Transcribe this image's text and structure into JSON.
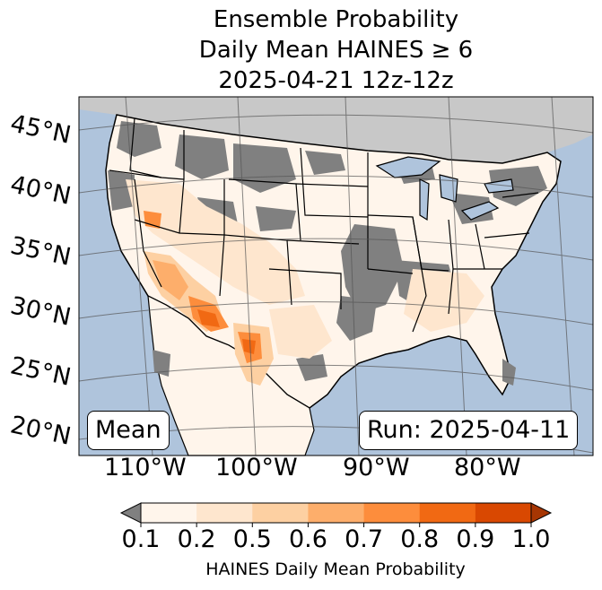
{
  "title": {
    "line1": "Ensemble Probability",
    "line2": "Daily Mean HAINES ≥ 6",
    "line3": "2025-04-21 12z-12z"
  },
  "labels": {
    "lat": [
      "45°N",
      "40°N",
      "35°N",
      "30°N",
      "25°N",
      "20°N"
    ],
    "lon": [
      "110°W",
      "100°W",
      "90°W",
      "80°W"
    ],
    "mean_box": "Mean",
    "run_box": "Run: 2025-04-11"
  },
  "colorbar": {
    "ticks": [
      "0.1",
      "0.2",
      "0.5",
      "0.6",
      "0.7",
      "0.8",
      "0.9",
      "1.0"
    ],
    "colors": [
      "#fff5eb",
      "#fee6ce",
      "#fdd0a2",
      "#fdae6b",
      "#fd8d3c",
      "#f16913",
      "#d94801"
    ],
    "under_color": "#808080",
    "over_color": "#a63603",
    "label": "HAINES Daily Mean Probability"
  },
  "map_colors": {
    "ocean": "#afc4dc",
    "canada_land": "#c8c8c8",
    "no_data": "#808080"
  }
}
